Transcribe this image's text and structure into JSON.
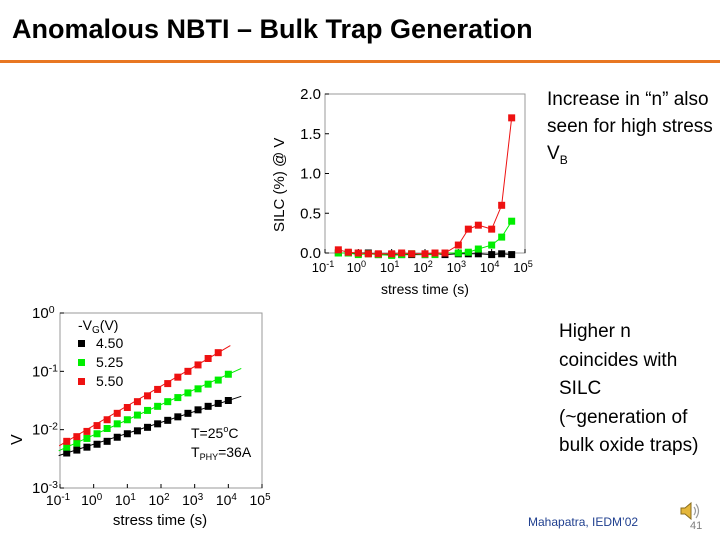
{
  "slide": {
    "title": "Anomalous NBTI – Bulk Trap Generation",
    "note_top": "Increase in “n” also seen for high stress V",
    "note_top_sub": "B",
    "note_bottom": "Higher n coincides with SILC (~generation of bulk oxide traps)",
    "citation": "Mahapatra, IEDM’02",
    "page_number": "41",
    "accent_color": "#e87722",
    "icons": [
      "speaker-icon"
    ]
  },
  "chart_data": [
    {
      "type": "line",
      "scale": "log-x, linear-y",
      "xlabel": "stress time (s)",
      "ylabel": "SILC (%) @ V",
      "x_ticks": [
        "10-1",
        "100",
        "101",
        "102",
        "103",
        "104",
        "105"
      ],
      "y_ticks": [
        "0.0",
        "0.5",
        "1.0",
        "1.5",
        "2.0"
      ],
      "xlim_log10": [
        -1,
        5
      ],
      "ylim": [
        0,
        2.0
      ],
      "series": [
        {
          "color": "#000000",
          "x_log10": [
            -0.6,
            -0.3,
            0.0,
            0.3,
            0.6,
            1.0,
            1.3,
            1.6,
            2.0,
            2.3,
            2.6,
            3.0,
            3.3,
            3.6,
            4.0,
            4.3,
            4.6
          ],
          "values": [
            0.0,
            0.0,
            0.0,
            0.0,
            -0.02,
            -0.02,
            -0.02,
            -0.02,
            -0.02,
            -0.01,
            -0.02,
            -0.01,
            -0.01,
            -0.01,
            -0.02,
            -0.01,
            -0.02
          ]
        },
        {
          "color": "#00ee00",
          "x_log10": [
            -0.6,
            -0.3,
            0.0,
            0.3,
            0.6,
            1.0,
            1.3,
            1.6,
            2.0,
            2.3,
            2.6,
            3.0,
            3.3,
            3.6,
            4.0,
            4.3,
            4.6
          ],
          "values": [
            0.0,
            0.0,
            -0.02,
            -0.01,
            -0.02,
            -0.03,
            -0.02,
            -0.01,
            -0.02,
            -0.02,
            0.0,
            0.0,
            0.01,
            0.05,
            0.1,
            0.2,
            0.4
          ]
        },
        {
          "color": "#ee1111",
          "x_log10": [
            -0.6,
            -0.3,
            0.0,
            0.3,
            0.6,
            1.0,
            1.3,
            1.6,
            2.0,
            2.3,
            2.6,
            3.0,
            3.3,
            3.6,
            4.0,
            4.3,
            4.6
          ],
          "values": [
            0.04,
            0.01,
            0.0,
            -0.01,
            -0.01,
            -0.01,
            0.0,
            -0.01,
            -0.01,
            0.0,
            0.0,
            0.1,
            0.3,
            0.35,
            0.3,
            0.6,
            1.7
          ]
        }
      ]
    },
    {
      "type": "scatter",
      "scale": "log-log",
      "xlabel": "stress time (s)",
      "ylabel": "V",
      "x_ticks": [
        "10-1",
        "100",
        "101",
        "102",
        "103",
        "104",
        "105"
      ],
      "y_ticks": [
        "10-3",
        "10-2",
        "10-1",
        "100"
      ],
      "xlim_log10": [
        -1,
        5
      ],
      "ylim_log10": [
        -3,
        0
      ],
      "legend": {
        "title": "-V",
        "title_sub": "G",
        "title_unit": "(V)",
        "entries": [
          "4.50",
          "5.25",
          "5.50"
        ],
        "position": "top-left"
      },
      "annotations": [
        {
          "text": "T=25",
          "sup": "o",
          "tail": "C"
        },
        {
          "text": "T",
          "sub": "PHY",
          "tail": "=36A"
        }
      ],
      "series": [
        {
          "name": "4.50",
          "color": "#000000",
          "x_log10": [
            -0.8,
            -0.5,
            -0.2,
            0.1,
            0.4,
            0.7,
            1.0,
            1.3,
            1.6,
            1.9,
            2.2,
            2.5,
            2.8,
            3.1,
            3.4,
            3.7,
            4.0
          ],
          "y_log10": [
            -2.4,
            -2.35,
            -2.3,
            -2.25,
            -2.2,
            -2.13,
            -2.07,
            -2.02,
            -1.96,
            -1.9,
            -1.84,
            -1.78,
            -1.72,
            -1.66,
            -1.6,
            -1.55,
            -1.5
          ]
        },
        {
          "name": "5.25",
          "color": "#00ee00",
          "x_log10": [
            -0.8,
            -0.5,
            -0.2,
            0.1,
            0.4,
            0.7,
            1.0,
            1.3,
            1.6,
            1.9,
            2.2,
            2.5,
            2.8,
            3.1,
            3.4,
            3.7,
            4.0
          ],
          "y_log10": [
            -2.3,
            -2.23,
            -2.15,
            -2.07,
            -1.98,
            -1.9,
            -1.83,
            -1.75,
            -1.67,
            -1.6,
            -1.52,
            -1.45,
            -1.37,
            -1.3,
            -1.22,
            -1.15,
            -1.05
          ]
        },
        {
          "name": "5.50",
          "color": "#ee1111",
          "x_log10": [
            -0.8,
            -0.5,
            -0.2,
            0.1,
            0.4,
            0.7,
            1.0,
            1.3,
            1.6,
            1.9,
            2.2,
            2.5,
            2.8,
            3.1,
            3.4,
            3.7
          ],
          "y_log10": [
            -2.2,
            -2.12,
            -2.03,
            -1.93,
            -1.83,
            -1.72,
            -1.62,
            -1.52,
            -1.42,
            -1.31,
            -1.21,
            -1.1,
            -1.0,
            -0.89,
            -0.78,
            -0.68
          ]
        }
      ]
    }
  ]
}
